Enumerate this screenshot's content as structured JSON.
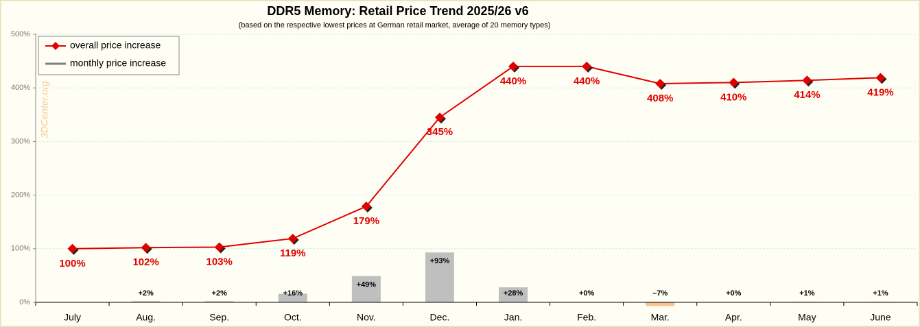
{
  "chart_data": {
    "type": "line",
    "title": "DDR5 Memory: Retail Price Trend 2025/26 v6",
    "subtitle": "(based on the respective lowest prices at German retail market, average of 20 memory types)",
    "watermark": "3DCenter.org",
    "categories": [
      "July",
      "Aug.",
      "Sep.",
      "Oct.",
      "Nov.",
      "Dec.",
      "Jan.",
      "Feb.",
      "Mar.",
      "Apr.",
      "May",
      "June"
    ],
    "series": [
      {
        "name": "overall price increase",
        "type": "line",
        "color": "#e00000",
        "values": [
          100,
          102,
          103,
          119,
          179,
          345,
          440,
          440,
          408,
          410,
          414,
          419
        ],
        "value_labels": [
          "100%",
          "102%",
          "103%",
          "119%",
          "179%",
          "345%",
          "440%",
          "440%",
          "408%",
          "410%",
          "414%",
          "419%"
        ]
      },
      {
        "name": "monthly price increase",
        "type": "bar",
        "color": "#808080",
        "colors": [
          null,
          "#bfbfbf",
          "#bfbfbf",
          "#bfbfbf",
          "#bfbfbf",
          "#bfbfbf",
          "#bfbfbf",
          "#bfbfbf",
          "#f9c18f",
          "#bfbfbf",
          "#bfbfbf",
          "#bfbfbf"
        ],
        "values": [
          null,
          2,
          2,
          16,
          49,
          93,
          28,
          0,
          -7,
          0,
          1,
          1
        ],
        "value_labels": [
          null,
          "+2%",
          "+2%",
          "+16%",
          "+49%",
          "+93%",
          "+28%",
          "+0%",
          "–7%",
          "+0%",
          "+1%",
          "+1%"
        ]
      }
    ],
    "ylim": [
      0,
      500
    ],
    "yticks": [
      {
        "value": 0,
        "label": "0%"
      },
      {
        "value": 100,
        "label": "100%"
      },
      {
        "value": 200,
        "label": "200%"
      },
      {
        "value": 300,
        "label": "300%"
      },
      {
        "value": 400,
        "label": "400%"
      },
      {
        "value": 500,
        "label": "500%"
      }
    ],
    "grid": true,
    "legend": "top-left"
  }
}
